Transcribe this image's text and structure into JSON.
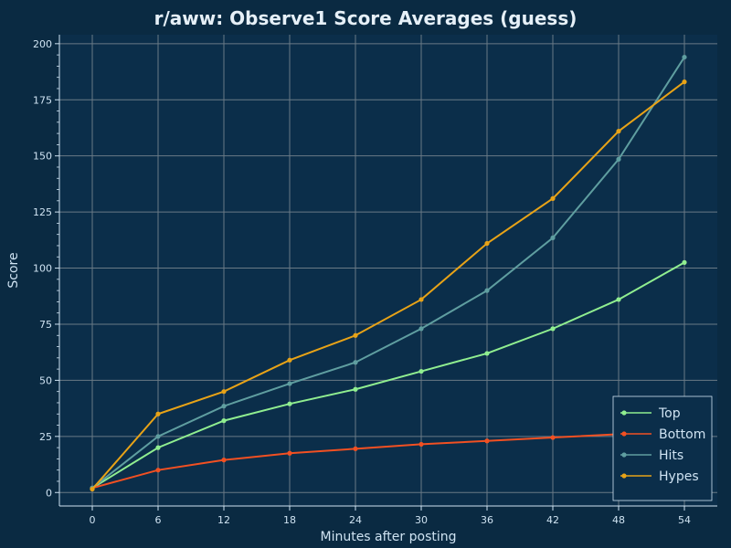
{
  "chart_data": {
    "type": "line",
    "title": "r/aww: Observe1 Score Averages (guess)",
    "xlabel": "Minutes after posting",
    "ylabel": "Score",
    "x": [
      0,
      6,
      12,
      18,
      24,
      30,
      36,
      42,
      48,
      54
    ],
    "xlim": [
      -3,
      57
    ],
    "ylim": [
      -6,
      204
    ],
    "xticks": [
      0,
      6,
      12,
      18,
      24,
      30,
      36,
      42,
      48,
      54
    ],
    "yticks": [
      0,
      25,
      50,
      75,
      100,
      125,
      150,
      175,
      200
    ],
    "grid": true,
    "legend_position": "bottom-right",
    "series": [
      {
        "name": "Top",
        "color": "#90ee90",
        "values": [
          2,
          20,
          32,
          39.5,
          46,
          54,
          62,
          73,
          86,
          102.5
        ]
      },
      {
        "name": "Bottom",
        "color": "#f25022",
        "values": [
          2,
          10,
          14.5,
          17.5,
          19.5,
          21.5,
          23,
          24.5,
          26,
          27
        ]
      },
      {
        "name": "Hits",
        "color": "#5f9ea0",
        "values": [
          2,
          25,
          38.5,
          48.5,
          58,
          73,
          90,
          113.5,
          148.5,
          194
        ]
      },
      {
        "name": "Hypes",
        "color": "#e8a317",
        "values": [
          1.5,
          35,
          45,
          59,
          70,
          86,
          111,
          131,
          161,
          183
        ]
      }
    ]
  },
  "colors": {
    "background": "#0a2a42",
    "plot_background": "#0b2e4a",
    "grid": "#6a7a86",
    "axis": "#cfe3f2"
  }
}
